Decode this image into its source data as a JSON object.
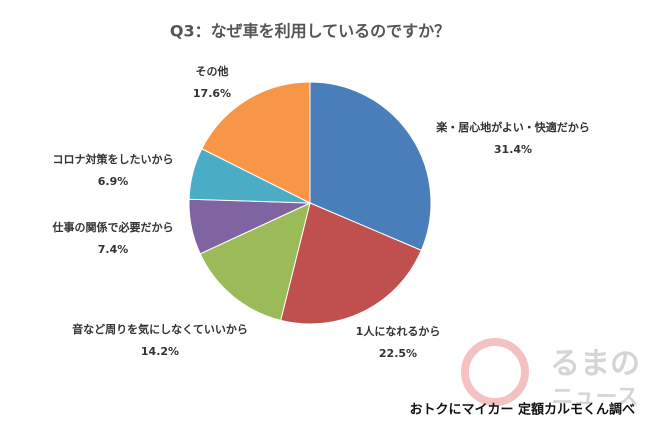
{
  "chart_data": {
    "type": "pie",
    "title": "Q3：なぜ車を利用しているのですか？",
    "categories": [
      "楽・居心地がよい・快適だから",
      "1人になれるから",
      "音など周りを気にしなくていいから",
      "仕事の関係で必要だから",
      "コロナ対策をしたいから",
      "その他"
    ],
    "values": [
      31.4,
      22.5,
      14.2,
      7.4,
      6.9,
      17.6
    ],
    "value_labels": [
      "31.4%",
      "22.5%",
      "14.2%",
      "7.4%",
      "6.9%",
      "17.6%"
    ],
    "colors": [
      "#4a7ebb",
      "#c0504d",
      "#9bbb59",
      "#8064a2",
      "#4bacc6",
      "#f79646"
    ],
    "source": "おトクにマイカー 定額カルモくん調べ",
    "watermark": [
      "るまの",
      "ニュース"
    ]
  }
}
